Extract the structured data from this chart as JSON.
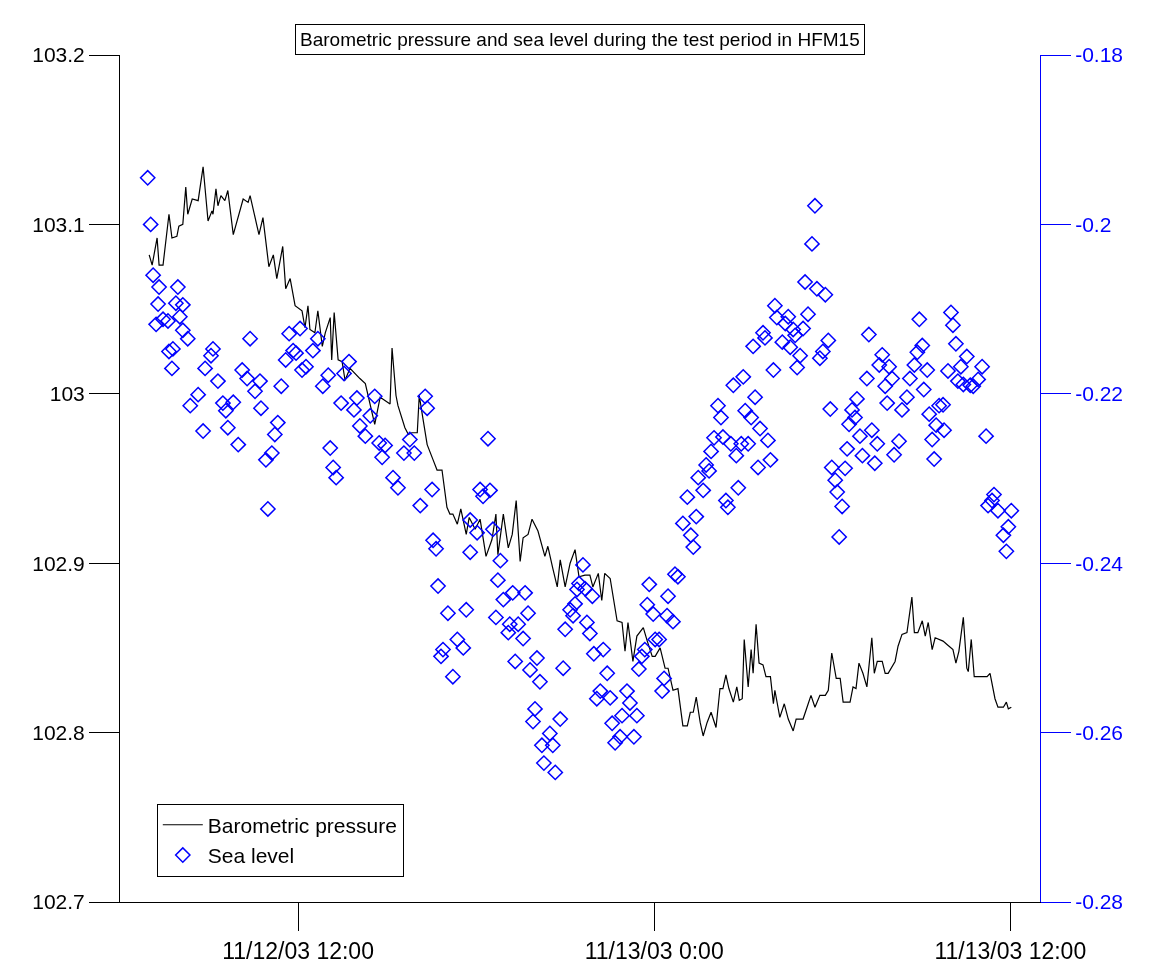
{
  "chart_data": {
    "type": "line",
    "title": "Barometric pressure and sea level during the test period in HFM15",
    "xlim": [
      "--11-12T06:00",
      "--11-13T13:00"
    ],
    "xticks": [
      {
        "value": "--11-12T12:00",
        "label": "11/12/03 12:00"
      },
      {
        "value": "--11-13T00:00",
        "label": "11/13/03 0:00"
      },
      {
        "value": "--11-13T12:00",
        "label": "11/13/03 12:00"
      }
    ],
    "ylim": [
      102.7,
      103.2
    ],
    "yticks": [
      102.7,
      102.8,
      102.9,
      103,
      103.1,
      103.2
    ],
    "y2lim": [
      -0.28,
      -0.18
    ],
    "y2ticks": [
      -0.28,
      -0.26,
      -0.24,
      -0.22,
      -0.2,
      -0.18
    ],
    "legend": "bottom left",
    "series": [
      {
        "name": "Barometric pressure",
        "marker": "none",
        "line_style": "solid",
        "color": "#000000",
        "x": [
          "--11-12T06:59",
          "--11-12T07:05",
          "--11-12T07:15",
          "--11-12T07:19",
          "--11-12T07:27",
          "--11-12T07:39",
          "--11-12T07:45",
          "--11-12T07:55",
          "--11-12T07:59",
          "--11-12T08:07",
          "--11-12T08:13",
          "--11-12T08:17",
          "--11-12T08:26",
          "--11-12T08:38",
          "--11-12T08:48",
          "--11-12T08:58",
          "--11-12T09:06",
          "--11-12T09:08",
          "--11-12T09:14",
          "--11-12T09:18",
          "--11-12T09:24",
          "--11-12T09:32",
          "--11-12T09:38",
          "--11-12T09:49",
          "--11-12T10:09",
          "--11-12T10:19",
          "--11-12T10:23",
          "--11-12T10:37",
          "--11-12T10:41",
          "--11-12T10:49",
          "--11-12T11:01",
          "--11-12T11:10",
          "--11-12T11:17",
          "--11-12T11:29",
          "--11-12T11:35",
          "--11-12T11:44",
          "--11-12T11:54",
          "--11-12T12:08",
          "--11-12T12:14",
          "--11-12T12:20",
          "--11-12T12:24",
          "--11-12T12:34",
          "--11-12T12:40",
          "--11-12T12:49",
          "--11-12T12:55",
          "--11-12T13:05",
          "--11-12T13:08",
          "--11-12T13:13",
          "--11-12T13:21",
          "--11-12T13:29",
          "--11-12T13:35",
          "--11-12T13:45",
          "--11-12T14:05",
          "--11-12T14:16",
          "--11-12T14:35",
          "--11-12T14:46",
          "--11-12T15:06",
          "--11-12T15:10",
          "--11-12T15:18",
          "--11-12T15:22",
          "--11-12T15:36",
          "--11-12T15:43",
          "--11-12T15:50",
          "--11-12T16:01",
          "--11-12T16:05",
          "--11-12T16:11",
          "--11-12T16:21",
          "--11-12T16:33",
          "--11-12T16:41",
          "--11-12T16:51",
          "--11-12T17:01",
          "--11-12T17:07",
          "--11-12T17:13",
          "--11-12T17:22",
          "--11-12T17:29",
          "--11-12T17:40",
          "--11-12T17:46",
          "--11-12T17:58",
          "--11-12T18:08",
          "--11-12T18:20",
          "--11-12T18:32",
          "--11-12T18:40",
          "--11-12T18:44",
          "--11-12T18:55",
          "--11-12T19:05",
          "--11-12T19:13",
          "--11-12T19:21",
          "--11-12T19:29",
          "--11-12T19:35",
          "--11-12T19:45",
          "--11-12T19:53",
          "--11-12T20:05",
          "--11-12T20:19",
          "--11-12T20:25",
          "--11-12T20:35",
          "--11-12T20:44",
          "--11-12T20:50",
          "--11-12T21:00",
          "--11-12T21:10",
          "--11-12T21:20",
          "--11-12T21:28",
          "--11-12T21:40",
          "--11-12T21:50",
          "--11-12T21:56",
          "--11-12T22:07",
          "--11-12T22:14",
          "--11-12T22:20",
          "--11-12T22:31",
          "--11-12T22:45",
          "--11-12T22:55",
          "--11-12T23:01",
          "--11-12T23:07",
          "--11-12T23:17",
          "--11-12T23:25",
          "--11-12T23:38",
          "--11-12T23:46",
          "--11-12T23:56",
          "--11-13T00:02",
          "--11-13T00:12",
          "--11-13T00:22",
          "--11-13T00:28",
          "--11-13T00:38",
          "--11-13T00:48",
          "--11-13T00:58",
          "--11-13T01:07",
          "--11-13T01:13",
          "--11-13T01:19",
          "--11-13T01:25",
          "--11-13T01:33",
          "--11-13T01:39",
          "--11-13T01:47",
          "--11-13T01:55",
          "--11-13T02:05",
          "--11-13T02:13",
          "--11-13T02:19",
          "--11-13T02:25",
          "--11-13T02:31",
          "--11-13T02:40",
          "--11-13T02:47",
          "--11-13T02:52",
          "--11-13T02:58",
          "--11-13T03:02",
          "--11-13T03:10",
          "--11-13T03:16",
          "--11-13T03:20",
          "--11-13T03:26",
          "--11-13T03:32",
          "--11-13T03:40",
          "--11-13T03:46",
          "--11-13T03:55",
          "--11-13T04:01",
          "--11-13T04:04",
          "--11-13T04:14",
          "--11-13T04:23",
          "--11-13T04:31",
          "--11-13T04:41",
          "--11-13T04:47",
          "--11-13T05:01",
          "--11-13T05:09",
          "--11-13T05:17",
          "--11-13T05:25",
          "--11-13T05:35",
          "--11-13T05:46",
          "--11-13T05:52",
          "--11-13T05:59",
          "--11-13T06:08",
          "--11-13T06:16",
          "--11-13T06:22",
          "--11-13T06:36",
          "--11-13T06:42",
          "--11-13T06:48",
          "--11-13T06:54",
          "--11-13T07:02",
          "--11-13T07:10",
          "--11-13T07:20",
          "--11-13T07:25",
          "--11-13T07:31",
          "--11-13T07:41",
          "--11-13T07:47",
          "--11-13T07:53",
          "--11-13T08:07",
          "--11-13T08:13",
          "--11-13T08:21",
          "--11-13T08:31",
          "--11-13T08:41",
          "--11-13T08:46",
          "--11-13T08:53",
          "--11-13T09:02",
          "--11-13T09:08",
          "--11-13T09:14",
          "--11-13T09:22",
          "--11-13T09:28",
          "--11-13T09:44",
          "--11-13T09:52",
          "--11-13T10:04",
          "--11-13T10:10",
          "--11-13T10:16",
          "--11-13T10:25",
          "--11-13T10:32",
          "--11-13T10:35",
          "--11-13T10:41",
          "--11-13T10:47",
          "--11-13T11:13",
          "--11-13T11:19",
          "--11-13T11:29",
          "--11-13T11:35",
          "--11-13T11:46",
          "--11-13T11:52",
          "--11-13T11:56",
          "--11-13T12:02"
        ],
        "values": [
          103.082,
          103.076,
          103.092,
          103.076,
          103.076,
          103.106,
          103.092,
          103.093,
          103.099,
          103.1,
          103.122,
          103.106,
          103.115,
          103.114,
          103.134,
          103.102,
          103.108,
          103.106,
          103.121,
          103.111,
          103.117,
          103.114,
          103.12,
          103.094,
          103.115,
          103.113,
          103.117,
          103.099,
          103.094,
          103.104,
          103.075,
          103.082,
          103.068,
          103.087,
          103.062,
          103.068,
          103.052,
          103.049,
          103.039,
          103.052,
          103.038,
          103.036,
          103.049,
          103.028,
          103.036,
          103.045,
          103.02,
          103.048,
          103.02,
          103.019,
          103.008,
          103.015,
          103.009,
          103.006,
          102.982,
          102.998,
          102.994,
          103.027,
          102.999,
          102.993,
          102.98,
          102.976,
          102.977,
          102.977,
          102.999,
          102.988,
          102.97,
          102.961,
          102.955,
          102.955,
          102.933,
          102.929,
          102.929,
          102.923,
          102.932,
          102.917,
          102.927,
          102.92,
          102.926,
          102.904,
          102.914,
          102.929,
          102.905,
          102.929,
          102.909,
          102.917,
          102.937,
          102.901,
          102.915,
          102.917,
          102.926,
          102.919,
          102.904,
          102.91,
          102.897,
          102.886,
          102.902,
          102.886,
          102.9,
          102.908,
          102.892,
          102.893,
          102.893,
          102.886,
          102.894,
          102.878,
          102.894,
          102.891,
          102.866,
          102.865,
          102.848,
          102.865,
          102.842,
          102.857,
          102.862,
          102.854,
          102.845,
          102.845,
          102.85,
          102.838,
          102.838,
          102.825,
          102.826,
          102.804,
          102.804,
          102.812,
          102.812,
          102.821,
          102.806,
          102.798,
          102.806,
          102.812,
          102.803,
          102.826,
          102.826,
          102.834,
          102.826,
          102.818,
          102.827,
          102.819,
          102.82,
          102.855,
          102.827,
          102.849,
          102.835,
          102.864,
          102.841,
          102.84,
          102.833,
          102.833,
          102.817,
          102.825,
          102.809,
          102.817,
          102.808,
          102.801,
          102.808,
          102.808,
          102.815,
          102.822,
          102.815,
          102.822,
          102.822,
          102.825,
          102.847,
          102.832,
          102.832,
          102.818,
          102.818,
          102.827,
          102.826,
          102.841,
          102.835,
          102.827,
          102.856,
          102.835,
          102.842,
          102.842,
          102.835,
          102.835,
          102.842,
          102.851,
          102.858,
          102.859,
          102.88,
          102.859,
          102.859,
          102.866,
          102.857,
          102.865,
          102.849,
          102.856,
          102.854,
          102.852,
          102.849,
          102.841,
          102.848,
          102.868,
          102.838,
          102.836,
          102.855,
          102.833,
          102.833,
          102.835,
          102.82,
          102.815,
          102.815,
          102.818,
          102.814,
          102.815
        ]
      },
      {
        "name": "Sea level",
        "type": "scatter",
        "marker": "diamond",
        "axis": "y2",
        "color": "#0000ff",
        "x": [
          "--11-12T06:56",
          "--11-12T07:02",
          "--11-12T07:07",
          "--11-12T07:19",
          "--11-12T07:17",
          "--11-12T07:13",
          "--11-12T07:27",
          "--11-12T07:37",
          "--11-12T07:57",
          "--11-12T07:53",
          "--11-12T08:07",
          "--11-12T08:01",
          "--11-12T07:47",
          "--11-12T07:39",
          "--11-12T07:45",
          "--11-12T08:07",
          "--11-12T08:17",
          "--11-12T09:04",
          "--11-12T09:08",
          "--11-12T08:52",
          "--11-12T08:38",
          "--11-12T08:22",
          "--11-12T08:48",
          "--11-12T09:18",
          "--11-12T09:28",
          "--11-12T09:34",
          "--11-12T09:49",
          "--11-12T09:38",
          "--11-12T09:59",
          "--11-12T10:07",
          "--11-12T10:17",
          "--11-12T10:23",
          "--11-12T10:33",
          "--11-12T10:45",
          "--11-12T10:43",
          "--11-12T10:55",
          "--11-12T10:59",
          "--11-12T11:07",
          "--11-12T11:13",
          "--11-12T11:19",
          "--11-12T11:26",
          "--11-12T11:35",
          "--11-12T11:42",
          "--11-12T11:50",
          "--11-12T11:56",
          "--11-12T12:04",
          "--11-12T12:08",
          "--11-12T12:16",
          "--11-12T12:30",
          "--11-12T12:40",
          "--11-12T12:50",
          "--11-12T13:01",
          "--11-12T13:05",
          "--11-12T13:11",
          "--11-12T13:17",
          "--11-12T13:27",
          "--11-12T13:33",
          "--11-12T13:43",
          "--11-12T13:53",
          "--11-12T13:59",
          "--11-12T14:05",
          "--11-12T14:16",
          "--11-12T14:26",
          "--11-12T14:35",
          "--11-12T14:44",
          "--11-12T14:50",
          "--11-12T14:56",
          "--11-12T15:12",
          "--11-12T15:22",
          "--11-12T15:34",
          "--11-12T15:46",
          "--11-12T15:55",
          "--11-12T16:07",
          "--11-12T16:17",
          "--11-12T16:21",
          "--11-12T18:24",
          "--11-12T16:31",
          "--11-12T16:33",
          "--11-12T16:39",
          "--11-12T16:43",
          "--11-12T17:03",
          "--11-12T17:13",
          "--11-12T16:53",
          "--11-12T16:49",
          "--11-12T17:22",
          "--11-12T17:34",
          "--11-12T17:40",
          "--11-12T17:48",
          "--11-12T18:08",
          "--11-12T18:28",
          "--11-12T18:14",
          "--11-12T18:02",
          "--11-12T17:48",
          "--11-12T18:34",
          "--11-12T18:49",
          "--11-12T18:44",
          "--11-12T18:40",
          "--11-12T18:55",
          "--11-12T19:14",
          "--11-12T19:39",
          "--11-12T19:45",
          "--11-12T19:08",
          "--11-12T19:05",
          "--11-12T19:25",
          "--11-12T19:35",
          "--11-12T19:19",
          "--11-12T19:49",
          "--11-12T20:03",
          "--11-12T20:09",
          "--11-12T19:59",
          "--11-12T19:55",
          "--11-12T20:29",
          "--11-12T20:13",
          "--11-12T20:35",
          "--11-12T20:17",
          "--11-12T20:40",
          "--11-12T20:50",
          "--11-12T20:56",
          "--11-12T21:00",
          "--11-12T21:16",
          "--11-12T21:10",
          "--11-12T21:20",
          "--11-12T21:28",
          "--11-12T21:36",
          "--11-12T21:24",
          "--11-12T21:40",
          "--11-12T21:55",
          "--11-12T21:44",
          "--11-12T21:50",
          "--11-12T21:58",
          "--11-12T22:17",
          "--11-12T22:25",
          "--11-12T22:04",
          "--11-12T22:11",
          "--11-12T22:31",
          "--11-12T22:35",
          "--11-12T22:41",
          "--11-12T22:51",
          "--11-12T22:55",
          "--11-12T23:05",
          "--11-12T23:11",
          "--11-12T23:25",
          "--11-12T23:19",
          "--11-12T23:29",
          "--11-12T23:35",
          "--11-12T23:41",
          "--11-13T00:16",
          "--11-13T00:20",
          "--11-13T00:02",
          "--11-13T00:10",
          "--11-13T00:28",
          "--11-12T23:46",
          "--11-12T23:50",
          "--11-12T23:58",
          "--11-13T00:26",
          "--11-13T00:38",
          "--11-13T00:42",
          "--11-13T00:48",
          "--11-13T00:58",
          "--11-13T01:14",
          "--11-13T01:19",
          "--11-13T01:07",
          "--11-13T01:25",
          "--11-13T01:29",
          "--11-13T01:39",
          "--11-13T01:45",
          "--11-13T01:51",
          "--11-13T01:55",
          "--11-13T02:01",
          "--11-13T02:19",
          "--11-13T02:09",
          "--11-13T02:15",
          "--11-13T02:25",
          "--11-13T02:29",
          "--11-13T02:35",
          "--11-13T02:46",
          "--11-13T02:50",
          "--11-13T02:40",
          "--11-13T03:00",
          "--11-13T02:56",
          "--11-13T03:10",
          "--11-13T03:04",
          "--11-13T03:16",
          "--11-13T03:24",
          "--11-13T03:34",
          "--11-13T03:30",
          "--11-13T03:50",
          "--11-13T03:55",
          "--11-13T03:20",
          "--11-13T03:40",
          "--11-13T03:44",
          "--11-13T04:01",
          "--11-13T04:04",
          "--11-13T04:08",
          "--11-13T04:19",
          "--11-13T04:25",
          "--11-13T04:31",
          "--11-13T04:35",
          "--11-13T04:41",
          "--11-13T04:45",
          "--11-13T04:49",
          "--11-13T04:55",
          "--11-13T05:01",
          "--11-13T05:05",
          "--11-13T05:11",
          "--11-13T05:19",
          "--11-13T05:25",
          "--11-13T05:29",
          "--11-13T05:41",
          "--11-13T05:35",
          "--11-13T05:46",
          "--11-13T05:52",
          "--11-13T05:56",
          "--11-13T05:59",
          "--11-13T06:06",
          "--11-13T06:10",
          "--11-13T06:20",
          "--11-13T06:14",
          "--11-13T06:26",
          "--11-13T06:30",
          "--11-13T06:34",
          "--11-13T06:40",
          "--11-13T06:46",
          "--11-13T06:50",
          "--11-13T07:01",
          "--11-13T06:56",
          "--11-13T07:10",
          "--11-13T07:14",
          "--11-13T07:20",
          "--11-13T07:26",
          "--11-13T07:31",
          "--11-13T07:35",
          "--11-13T07:41",
          "--11-13T07:47",
          "--11-13T07:51",
          "--11-13T07:55",
          "--11-13T08:01",
          "--11-13T08:05",
          "--11-13T08:15",
          "--11-13T08:21",
          "--11-13T08:31",
          "--11-13T08:37",
          "--11-13T08:46",
          "--11-13T08:52",
          "--11-13T08:56",
          "--11-13T09:02",
          "--11-13T09:05",
          "--11-13T09:12",
          "--11-13T09:16",
          "--11-13T09:22",
          "--11-13T09:26",
          "--11-13T09:30",
          "--11-13T09:36",
          "--11-13T09:44",
          "--11-13T09:46",
          "--11-13T09:54",
          "--11-13T10:00",
          "--11-13T10:04",
          "--11-13T10:10",
          "--11-13T10:14",
          "--11-13T10:20",
          "--11-13T10:25",
          "--11-13T10:32",
          "--11-13T10:39",
          "--11-13T10:45",
          "--11-13T10:55",
          "--11-13T11:03",
          "--11-13T11:11",
          "--11-13T11:15",
          "--11-13T11:23",
          "--11-13T11:27",
          "--11-13T11:35",
          "--11-13T11:46",
          "--11-13T11:52",
          "--11-13T11:56",
          "--11-13T12:02"
        ],
        "values": [
          -0.1945,
          -0.2,
          -0.206,
          -0.2074,
          -0.2094,
          -0.2118,
          -0.2112,
          -0.2114,
          -0.2074,
          -0.2093,
          -0.2095,
          -0.2109,
          -0.2147,
          -0.215,
          -0.217,
          -0.2125,
          -0.2135,
          -0.2155,
          -0.2147,
          -0.217,
          -0.2201,
          -0.2214,
          -0.2244,
          -0.2185,
          -0.2211,
          -0.222,
          -0.221,
          -0.224,
          -0.226,
          -0.2172,
          -0.2182,
          -0.2135,
          -0.2197,
          -0.2217,
          -0.2185,
          -0.2278,
          -0.2336,
          -0.227,
          -0.2248,
          -0.2234,
          -0.2191,
          -0.216,
          -0.2129,
          -0.2149,
          -0.2152,
          -0.2123,
          -0.2172,
          -0.2168,
          -0.2149,
          -0.2135,
          -0.2191,
          -0.2178,
          -0.2264,
          -0.2287,
          -0.2299,
          -0.2211,
          -0.2176,
          -0.2162,
          -0.2219,
          -0.2205,
          -0.2238,
          -0.225,
          -0.2226,
          -0.2203,
          -0.2258,
          -0.2275,
          -0.2261,
          -0.2299,
          -0.2311,
          -0.227,
          -0.2254,
          -0.227,
          -0.2332,
          -0.2203,
          -0.2217,
          -0.2253,
          -0.2313,
          -0.2373,
          -0.2383,
          -0.2427,
          -0.2459,
          -0.2534,
          -0.2502,
          -0.251,
          -0.249,
          -0.25,
          -0.2455,
          -0.2349,
          -0.2313,
          -0.2314,
          -0.2321,
          -0.2364,
          -0.2387,
          -0.236,
          -0.2397,
          -0.242,
          -0.2464,
          -0.2443,
          -0.2435,
          -0.2435,
          -0.2459,
          -0.2472,
          -0.2482,
          -0.2472,
          -0.2489,
          -0.2516,
          -0.2526,
          -0.2512,
          -0.254,
          -0.2572,
          -0.2587,
          -0.2601,
          -0.2615,
          -0.2615,
          -0.2636,
          -0.2647,
          -0.2584,
          -0.2524,
          -0.2478,
          -0.2462,
          -0.2455,
          -0.2448,
          -0.2424,
          -0.2402,
          -0.2431,
          -0.243,
          -0.2439,
          -0.247,
          -0.2483,
          -0.2507,
          -0.2502,
          -0.253,
          -0.256,
          -0.2551,
          -0.2559,
          -0.2589,
          -0.2612,
          -0.2605,
          -0.258,
          -0.2551,
          -0.2565,
          -0.258,
          -0.2605,
          -0.2525,
          -0.251,
          -0.2502,
          -0.2551,
          -0.2536,
          -0.249,
          -0.249,
          -0.2439,
          -0.2449,
          -0.2425,
          -0.246,
          -0.2462,
          -0.2469,
          -0.2413,
          -0.2416,
          -0.2353,
          -0.2367,
          -0.2381,
          -0.2322,
          -0.2345,
          -0.2299,
          -0.2314,
          -0.2284,
          -0.2291,
          -0.2268,
          -0.2252,
          -0.2251,
          -0.2214,
          -0.2228,
          -0.2326,
          -0.2334,
          -0.2259,
          -0.2273,
          -0.2311,
          -0.219,
          -0.218,
          -0.2259,
          -0.2259,
          -0.222,
          -0.2228,
          -0.2204,
          -0.2241,
          -0.2287,
          -0.2255,
          -0.2278,
          -0.2144,
          -0.2128,
          -0.2134,
          -0.2172,
          -0.2096,
          -0.211,
          -0.2139,
          -0.2117,
          -0.2109,
          -0.2145,
          -0.2124,
          -0.2131,
          -0.2169,
          -0.2155,
          -0.2123,
          -0.2068,
          -0.2106,
          -0.2023,
          -0.1978,
          -0.2076,
          -0.215,
          -0.2158,
          -0.2083,
          -0.2137,
          -0.2218,
          -0.2287,
          -0.2302,
          -0.2316,
          -0.2333,
          -0.2369,
          -0.2288,
          -0.2265,
          -0.2236,
          -0.2219,
          -0.2228,
          -0.2206,
          -0.2273,
          -0.225,
          -0.2182,
          -0.213,
          -0.2243,
          -0.2282,
          -0.2259,
          -0.2166,
          -0.2154,
          -0.2191,
          -0.2211,
          -0.2168,
          -0.2182,
          -0.2272,
          -0.2256,
          -0.2219,
          -0.2204,
          -0.2182,
          -0.2166,
          -0.2151,
          -0.2112,
          -0.2143,
          -0.2195,
          -0.2172,
          -0.2224,
          -0.2254,
          -0.2277,
          -0.2237,
          -0.2214,
          -0.2213,
          -0.2243,
          -0.2173,
          -0.2104,
          -0.2119,
          -0.2141,
          -0.2185,
          -0.2168,
          -0.2189,
          -0.2156,
          -0.219,
          -0.2191,
          -0.2183,
          -0.2168,
          -0.225,
          -0.2332,
          -0.2326,
          -0.2319,
          -0.2338,
          -0.2367,
          -0.2386,
          -0.2357,
          -0.2338
        ]
      }
    ]
  }
}
